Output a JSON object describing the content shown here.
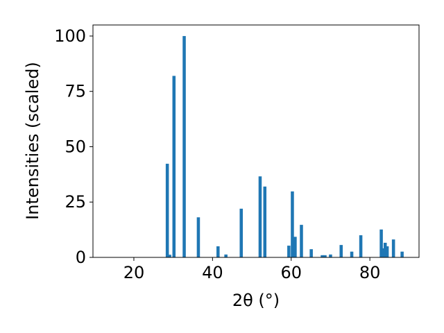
{
  "chart_data": {
    "type": "bar",
    "title": "",
    "xlabel": "2θ (°)",
    "ylabel": "Intensities (scaled)",
    "xlim": [
      9.6,
      92.5
    ],
    "ylim": [
      0,
      105
    ],
    "xticks": [
      20,
      40,
      60,
      80
    ],
    "yticks": [
      0,
      25,
      50,
      75,
      100
    ],
    "grid": false,
    "bar_color": "#1f77b4",
    "bar_width": 0.8,
    "x": [
      28.5,
      29.1,
      30.2,
      32.8,
      36.4,
      41.4,
      43.4,
      47.3,
      52.1,
      53.3,
      59.4,
      60.3,
      61.0,
      62.6,
      65.1,
      67.9,
      68.6,
      70.0,
      72.7,
      75.4,
      77.7,
      82.9,
      83.3,
      83.9,
      84.4,
      86.0,
      88.2
    ],
    "values": [
      42.3,
      1.2,
      82.0,
      100.0,
      18.1,
      5.0,
      1.3,
      22.0,
      36.6,
      32.0,
      5.3,
      29.8,
      9.3,
      14.7,
      3.7,
      1.0,
      1.0,
      1.3,
      5.6,
      2.6,
      10.0,
      12.6,
      4.1,
      6.6,
      5.0,
      8.1,
      2.6
    ]
  }
}
